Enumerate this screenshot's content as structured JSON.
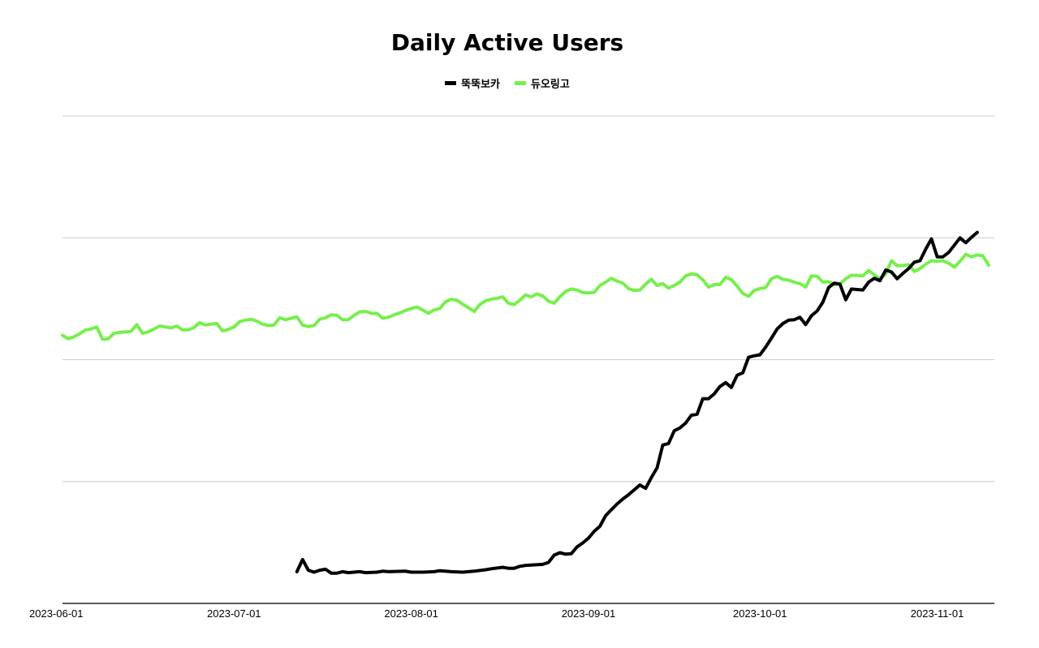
{
  "chart_data": {
    "type": "line",
    "title": "Daily Active Users",
    "x_tick_labels": [
      "2023-06-01",
      "2023-07-01",
      "2023-08-01",
      "2023-09-01",
      "2023-10-01",
      "2023-11-01"
    ],
    "x_range_days": [
      0,
      163
    ],
    "y_range": [
      0,
      100
    ],
    "y_gridlines": [
      25,
      50,
      75,
      100
    ],
    "legend_position": "top-center",
    "series": [
      {
        "name": "뚝뚝보카",
        "color": "#000000",
        "points": [
          [
            41,
            6.5
          ],
          [
            42,
            9
          ],
          [
            43,
            6.8
          ],
          [
            44,
            6.4
          ],
          [
            45,
            6.8
          ],
          [
            46,
            7
          ],
          [
            47,
            6.2
          ],
          [
            48,
            6.2
          ],
          [
            49,
            6.5
          ],
          [
            50,
            6.3
          ],
          [
            52,
            6.5
          ],
          [
            53,
            6.3
          ],
          [
            55,
            6.4
          ],
          [
            56,
            6.6
          ],
          [
            57,
            6.5
          ],
          [
            60,
            6.6
          ],
          [
            61,
            6.4
          ],
          [
            63,
            6.4
          ],
          [
            65,
            6.5
          ],
          [
            66,
            6.7
          ],
          [
            68,
            6.5
          ],
          [
            70,
            6.4
          ],
          [
            72,
            6.6
          ],
          [
            74,
            6.9
          ],
          [
            75,
            7.1
          ],
          [
            77,
            7.4
          ],
          [
            78,
            7.2
          ],
          [
            79,
            7.2
          ],
          [
            80,
            7.6
          ],
          [
            81,
            7.8
          ],
          [
            84,
            8
          ],
          [
            85,
            8.4
          ],
          [
            86,
            9.9
          ],
          [
            87,
            10.4
          ],
          [
            88,
            10.1
          ],
          [
            89,
            10.2
          ],
          [
            90,
            11.6
          ],
          [
            91,
            12.4
          ],
          [
            92,
            13.4
          ],
          [
            93,
            14.8
          ],
          [
            94,
            15.8
          ],
          [
            95,
            18
          ],
          [
            96,
            19.2
          ],
          [
            97,
            20.4
          ],
          [
            98,
            21.4
          ],
          [
            99,
            22.3
          ],
          [
            100,
            23.3
          ],
          [
            101,
            24.3
          ],
          [
            102,
            23.6
          ],
          [
            103,
            25.8
          ],
          [
            104,
            27.8
          ],
          [
            105,
            32.5
          ],
          [
            106,
            32.8
          ],
          [
            107,
            35.4
          ],
          [
            108,
            36
          ],
          [
            109,
            37
          ],
          [
            110,
            38.6
          ],
          [
            111,
            38.8
          ],
          [
            112,
            42
          ],
          [
            113,
            42
          ],
          [
            114,
            43
          ],
          [
            115,
            44.5
          ],
          [
            116,
            45.3
          ],
          [
            117,
            44.3
          ],
          [
            118,
            46.8
          ],
          [
            119,
            47.3
          ],
          [
            120,
            50.5
          ],
          [
            121,
            50.8
          ],
          [
            122,
            51
          ],
          [
            123,
            52.6
          ],
          [
            124,
            54.4
          ],
          [
            125,
            56.3
          ],
          [
            126,
            57.4
          ],
          [
            127,
            58.1
          ],
          [
            128,
            58.2
          ],
          [
            129,
            58.7
          ],
          [
            130,
            57.2
          ],
          [
            131,
            59
          ],
          [
            132,
            60
          ],
          [
            133,
            61.8
          ],
          [
            134,
            64.8
          ],
          [
            135,
            65.7
          ],
          [
            136,
            65.5
          ],
          [
            137,
            62.3
          ],
          [
            138,
            64.5
          ],
          [
            139,
            64.4
          ],
          [
            140,
            64.3
          ],
          [
            141,
            65.9
          ],
          [
            142,
            66.7
          ],
          [
            143,
            66.2
          ],
          [
            144,
            68.4
          ],
          [
            145,
            68
          ],
          [
            146,
            66.6
          ],
          [
            147,
            67.7
          ],
          [
            148,
            68.7
          ],
          [
            149,
            70
          ],
          [
            150,
            70.3
          ],
          [
            151,
            72.7
          ],
          [
            152,
            74.8
          ],
          [
            153,
            71.1
          ],
          [
            154,
            71.1
          ],
          [
            155,
            72
          ],
          [
            156,
            73.5
          ],
          [
            157,
            75
          ],
          [
            158,
            74
          ],
          [
            159,
            75.1
          ],
          [
            160,
            76.1
          ]
        ]
      },
      {
        "name": "듀오링고",
        "color": "#77ef4d",
        "points": [
          [
            0,
            55
          ],
          [
            1,
            54.3
          ],
          [
            2,
            54.7
          ],
          [
            3,
            55.3
          ],
          [
            4,
            56.1
          ],
          [
            5,
            56.3
          ],
          [
            6,
            56.7
          ],
          [
            7,
            54.2
          ],
          [
            8,
            54.3
          ],
          [
            9,
            55.4
          ],
          [
            10,
            55.6
          ],
          [
            11,
            55.7
          ],
          [
            12,
            55.8
          ],
          [
            13,
            57.2
          ],
          [
            14,
            55.4
          ],
          [
            15,
            55.7
          ],
          [
            16,
            56.3
          ],
          [
            17,
            56.9
          ],
          [
            18,
            56.7
          ],
          [
            19,
            56.5
          ],
          [
            20,
            56.9
          ],
          [
            21,
            56.1
          ],
          [
            22,
            56.1
          ],
          [
            23,
            56.6
          ],
          [
            24,
            57.6
          ],
          [
            25,
            57.1
          ],
          [
            26,
            57.3
          ],
          [
            27,
            57.4
          ],
          [
            28,
            55.9
          ],
          [
            29,
            56.2
          ],
          [
            30,
            56.7
          ],
          [
            31,
            57.8
          ],
          [
            32,
            58.1
          ],
          [
            33,
            58.3
          ],
          [
            34,
            57.9
          ],
          [
            35,
            57.3
          ],
          [
            36,
            57
          ],
          [
            37,
            57.1
          ],
          [
            38,
            58.6
          ],
          [
            39,
            58.2
          ],
          [
            40,
            58.5
          ],
          [
            41,
            58.8
          ],
          [
            42,
            57.1
          ],
          [
            43,
            56.8
          ],
          [
            44,
            57
          ],
          [
            45,
            58.3
          ],
          [
            46,
            58.6
          ],
          [
            47,
            59.2
          ],
          [
            48,
            59.1
          ],
          [
            49,
            58.2
          ],
          [
            50,
            58.2
          ],
          [
            51,
            59.1
          ],
          [
            52,
            59.8
          ],
          [
            53,
            59.9
          ],
          [
            54,
            59.5
          ],
          [
            55,
            59.5
          ],
          [
            56,
            58.5
          ],
          [
            57,
            58.7
          ],
          [
            58,
            59.2
          ],
          [
            59,
            59.6
          ],
          [
            60,
            60.1
          ],
          [
            61,
            60.5
          ],
          [
            62,
            60.8
          ],
          [
            63,
            60.2
          ],
          [
            64,
            59.5
          ],
          [
            65,
            60.2
          ],
          [
            66,
            60.5
          ],
          [
            67,
            61.9
          ],
          [
            68,
            62.4
          ],
          [
            69,
            62.2
          ],
          [
            70,
            61.4
          ],
          [
            71,
            60.7
          ],
          [
            72,
            59.9
          ],
          [
            73,
            61.3
          ],
          [
            74,
            62.1
          ],
          [
            75,
            62.4
          ],
          [
            76,
            62.6
          ],
          [
            77,
            62.9
          ],
          [
            78,
            61.6
          ],
          [
            79,
            61.3
          ],
          [
            80,
            62.2
          ],
          [
            81,
            63.3
          ],
          [
            82,
            62.9
          ],
          [
            83,
            63.5
          ],
          [
            84,
            63.1
          ],
          [
            85,
            62
          ],
          [
            86,
            61.6
          ],
          [
            87,
            62.9
          ],
          [
            88,
            64
          ],
          [
            89,
            64.5
          ],
          [
            90,
            64.3
          ],
          [
            91,
            63.8
          ],
          [
            92,
            63.7
          ],
          [
            93,
            63.8
          ],
          [
            94,
            65.2
          ],
          [
            95,
            65.9
          ],
          [
            96,
            66.7
          ],
          [
            97,
            66.1
          ],
          [
            98,
            65.7
          ],
          [
            99,
            64.6
          ],
          [
            100,
            64.2
          ],
          [
            101,
            64.3
          ],
          [
            102,
            65.5
          ],
          [
            103,
            66.5
          ],
          [
            104,
            65.2
          ],
          [
            105,
            65.6
          ],
          [
            106,
            64.7
          ],
          [
            107,
            65.2
          ],
          [
            108,
            65.9
          ],
          [
            109,
            67.2
          ],
          [
            110,
            67.6
          ],
          [
            111,
            67.4
          ],
          [
            112,
            66.4
          ],
          [
            113,
            64.9
          ],
          [
            114,
            65.4
          ],
          [
            115,
            65.4
          ],
          [
            116,
            66.9
          ],
          [
            117,
            66.4
          ],
          [
            118,
            65.1
          ],
          [
            119,
            63.6
          ],
          [
            120,
            63
          ],
          [
            121,
            64.2
          ],
          [
            122,
            64.6
          ],
          [
            123,
            64.8
          ],
          [
            124,
            66.6
          ],
          [
            125,
            67.1
          ],
          [
            126,
            66.5
          ],
          [
            127,
            66.3
          ],
          [
            128,
            65.9
          ],
          [
            129,
            65.6
          ],
          [
            130,
            64.9
          ],
          [
            131,
            67.2
          ],
          [
            132,
            67.1
          ],
          [
            133,
            65.9
          ],
          [
            134,
            66
          ],
          [
            135,
            65.4
          ],
          [
            136,
            65.5
          ],
          [
            137,
            66.6
          ],
          [
            138,
            67.3
          ],
          [
            139,
            67.3
          ],
          [
            140,
            67.2
          ],
          [
            141,
            68.3
          ],
          [
            142,
            67.4
          ],
          [
            143,
            66.6
          ],
          [
            144,
            67.6
          ],
          [
            145,
            70.3
          ],
          [
            146,
            69.3
          ],
          [
            147,
            69.3
          ],
          [
            148,
            69.5
          ],
          [
            149,
            68.1
          ],
          [
            150,
            68.7
          ],
          [
            151,
            69.6
          ],
          [
            152,
            70.3
          ],
          [
            153,
            70.2
          ],
          [
            154,
            70.3
          ],
          [
            155,
            69.8
          ],
          [
            156,
            69
          ],
          [
            157,
            70.2
          ],
          [
            158,
            71.6
          ],
          [
            159,
            71.1
          ],
          [
            160,
            71.5
          ],
          [
            161,
            71.3
          ],
          [
            162,
            69.4
          ]
        ]
      }
    ]
  }
}
